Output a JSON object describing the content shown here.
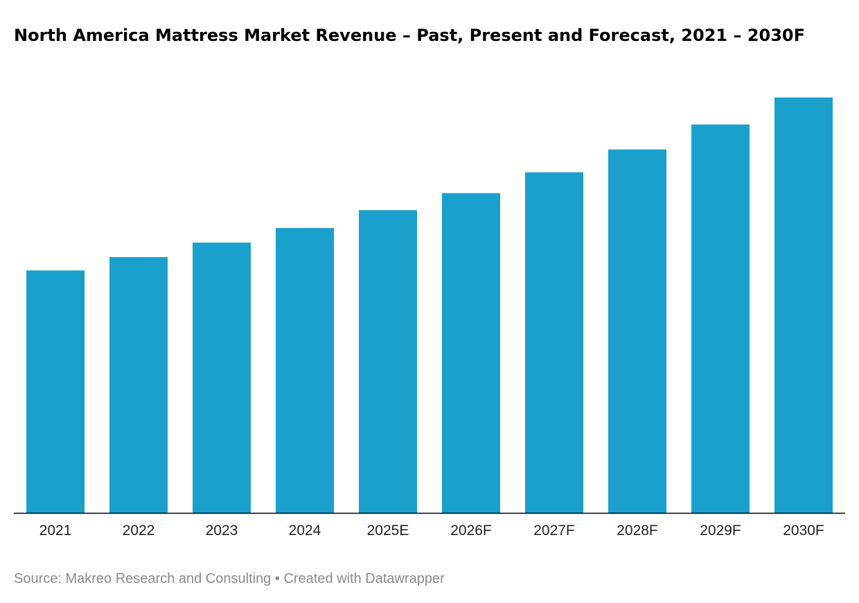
{
  "colors": {
    "bar": "#1aa0cd",
    "axis": "#000000",
    "footer_text": "#8a8a8a"
  },
  "footer": {
    "source": "Source: Makreo Research and Consulting",
    "separator": "•",
    "credit": "Created with Datawrapper"
  },
  "chart_data": {
    "type": "bar",
    "title": "North America Mattress Market Revenue – Past, Present and Forecast, 2021 – 2030F",
    "xlabel": "",
    "ylabel": "",
    "categories": [
      "2021",
      "2022",
      "2023",
      "2024",
      "2025E",
      "2026F",
      "2027F",
      "2028F",
      "2029F",
      "2030F"
    ],
    "values": [
      58.3,
      61.5,
      65.0,
      68.5,
      72.8,
      76.9,
      81.9,
      87.4,
      93.4,
      99.9
    ],
    "ylim": [
      0,
      100
    ],
    "grid": false,
    "legend": "none",
    "value_labels": false
  }
}
